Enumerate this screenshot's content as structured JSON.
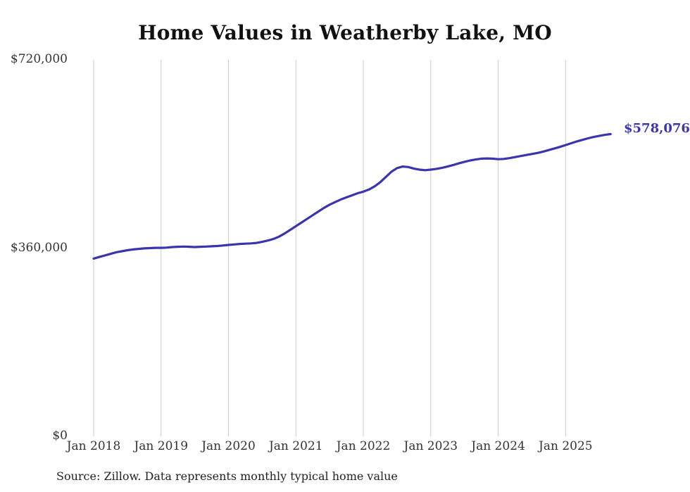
{
  "title": "Home Values in Weatherby Lake, MO",
  "source_note": "Source: Zillow. Data represents monthly typical home value",
  "chart_data": {
    "type": "line",
    "title": "Home Values in Weatherby Lake, MO",
    "series_name": "Monthly typical home value",
    "line_color": "#3a35ae",
    "grid": "vertical",
    "legend": "none",
    "ylim": [
      0,
      720000
    ],
    "y_tick_values": [
      0,
      360000,
      720000
    ],
    "y_tick_labels": [
      "$0",
      "$360,000",
      "$720,000"
    ],
    "x_tick_labels": [
      "Jan 2018",
      "Jan 2019",
      "Jan 2020",
      "Jan 2021",
      "Jan 2022",
      "Jan 2023",
      "Jan 2024",
      "Jan 2025"
    ],
    "final_value": 578076,
    "final_value_label": "$578,076",
    "months": [
      "2018-01",
      "2018-02",
      "2018-03",
      "2018-04",
      "2018-05",
      "2018-06",
      "2018-07",
      "2018-08",
      "2018-09",
      "2018-10",
      "2018-11",
      "2018-12",
      "2019-01",
      "2019-02",
      "2019-03",
      "2019-04",
      "2019-05",
      "2019-06",
      "2019-07",
      "2019-08",
      "2019-09",
      "2019-10",
      "2019-11",
      "2019-12",
      "2020-01",
      "2020-02",
      "2020-03",
      "2020-04",
      "2020-05",
      "2020-06",
      "2020-07",
      "2020-08",
      "2020-09",
      "2020-10",
      "2020-11",
      "2020-12",
      "2021-01",
      "2021-02",
      "2021-03",
      "2021-04",
      "2021-05",
      "2021-06",
      "2021-07",
      "2021-08",
      "2021-09",
      "2021-10",
      "2021-11",
      "2021-12",
      "2022-01",
      "2022-02",
      "2022-03",
      "2022-04",
      "2022-05",
      "2022-06",
      "2022-07",
      "2022-08",
      "2022-09",
      "2022-10",
      "2022-11",
      "2022-12",
      "2023-01",
      "2023-02",
      "2023-03",
      "2023-04",
      "2023-05",
      "2023-06",
      "2023-07",
      "2023-08",
      "2023-09",
      "2023-10",
      "2023-11",
      "2023-12",
      "2024-01",
      "2024-02",
      "2024-03",
      "2024-04",
      "2024-05",
      "2024-06",
      "2024-07",
      "2024-08",
      "2024-09",
      "2024-10",
      "2024-11",
      "2024-12",
      "2025-01",
      "2025-02",
      "2025-03",
      "2025-04",
      "2025-05",
      "2025-06",
      "2025-07",
      "2025-08",
      "2025-09"
    ],
    "values": [
      340000,
      343000,
      346000,
      349000,
      352000,
      354000,
      356000,
      357500,
      358500,
      359500,
      360000,
      360500,
      360500,
      361000,
      362000,
      362500,
      363000,
      362500,
      362000,
      362500,
      363000,
      363500,
      364000,
      365000,
      366000,
      367000,
      368000,
      368500,
      369000,
      370000,
      372000,
      374500,
      377500,
      382000,
      388000,
      395000,
      402000,
      409000,
      416000,
      423000,
      430000,
      437000,
      443000,
      448000,
      453000,
      457000,
      461000,
      465000,
      468000,
      472000,
      478000,
      486000,
      496000,
      506000,
      513000,
      516000,
      515000,
      512000,
      510000,
      509000,
      510000,
      511500,
      513500,
      516000,
      519000,
      522000,
      525000,
      527500,
      529500,
      531000,
      531500,
      531000,
      530000,
      530500,
      532000,
      534000,
      536000,
      538000,
      540000,
      542000,
      544500,
      547500,
      550500,
      553500,
      557000,
      560500,
      564000,
      567000,
      570000,
      572500,
      574500,
      576500,
      578076
    ]
  }
}
